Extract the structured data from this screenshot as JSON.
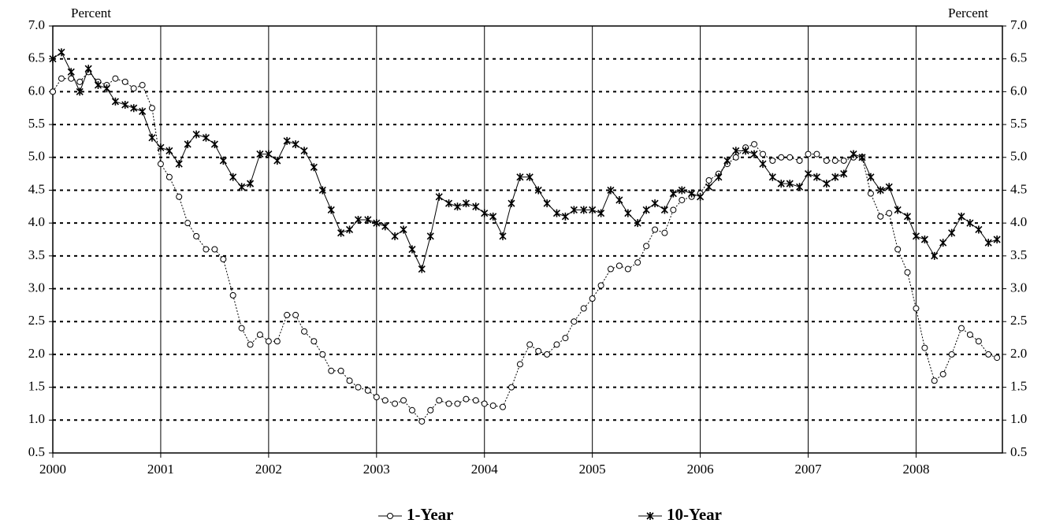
{
  "chart_data": {
    "type": "line",
    "y_label": "Percent",
    "y2_label": "Percent",
    "x": [
      2000.0,
      2000.08,
      2000.17,
      2000.25,
      2000.33,
      2000.42,
      2000.5,
      2000.58,
      2000.67,
      2000.75,
      2000.83,
      2000.92,
      2001.0,
      2001.08,
      2001.17,
      2001.25,
      2001.33,
      2001.42,
      2001.5,
      2001.58,
      2001.67,
      2001.75,
      2001.83,
      2001.92,
      2002.0,
      2002.08,
      2002.17,
      2002.25,
      2002.33,
      2002.42,
      2002.5,
      2002.58,
      2002.67,
      2002.75,
      2002.83,
      2002.92,
      2003.0,
      2003.08,
      2003.17,
      2003.25,
      2003.33,
      2003.42,
      2003.5,
      2003.58,
      2003.67,
      2003.75,
      2003.83,
      2003.92,
      2004.0,
      2004.08,
      2004.17,
      2004.25,
      2004.33,
      2004.42,
      2004.5,
      2004.58,
      2004.67,
      2004.75,
      2004.83,
      2004.92,
      2005.0,
      2005.08,
      2005.17,
      2005.25,
      2005.33,
      2005.42,
      2005.5,
      2005.58,
      2005.67,
      2005.75,
      2005.83,
      2005.92,
      2006.0,
      2006.08,
      2006.17,
      2006.25,
      2006.33,
      2006.42,
      2006.5,
      2006.58,
      2006.67,
      2006.75,
      2006.83,
      2006.92,
      2007.0,
      2007.08,
      2007.17,
      2007.25,
      2007.33,
      2007.42,
      2007.5,
      2007.58,
      2007.67,
      2007.75,
      2007.83,
      2007.92,
      2008.0,
      2008.08,
      2008.17,
      2008.25,
      2008.33,
      2008.42,
      2008.5,
      2008.58,
      2008.67,
      2008.75
    ],
    "series": [
      {
        "name": "1-Year",
        "color": "#000000",
        "marker": "circle",
        "values": [
          6.0,
          6.2,
          6.2,
          6.15,
          6.3,
          6.15,
          6.1,
          6.2,
          6.15,
          6.05,
          6.1,
          5.75,
          4.9,
          4.7,
          4.4,
          4.0,
          3.8,
          3.6,
          3.6,
          3.45,
          2.9,
          2.4,
          2.15,
          2.3,
          2.2,
          2.2,
          2.6,
          2.6,
          2.35,
          2.2,
          2.0,
          1.75,
          1.75,
          1.6,
          1.5,
          1.45,
          1.35,
          1.3,
          1.25,
          1.3,
          1.15,
          0.98,
          1.15,
          1.3,
          1.25,
          1.25,
          1.32,
          1.3,
          1.25,
          1.22,
          1.2,
          1.5,
          1.85,
          2.15,
          2.05,
          2.0,
          2.15,
          2.25,
          2.5,
          2.7,
          2.85,
          3.05,
          3.3,
          3.35,
          3.3,
          3.4,
          3.65,
          3.9,
          3.85,
          4.2,
          4.35,
          4.4,
          4.45,
          4.65,
          4.75,
          4.9,
          5.0,
          5.15,
          5.2,
          5.05,
          4.95,
          5.0,
          5.0,
          4.95,
          5.05,
          5.05,
          4.95,
          4.95,
          4.95,
          5.0,
          5.0,
          4.45,
          4.1,
          4.15,
          3.6,
          3.25,
          2.7,
          2.1,
          1.6,
          1.7,
          2.0,
          2.4,
          2.3,
          2.2,
          2.0,
          1.95
        ]
      },
      {
        "name": "10-Year",
        "color": "#000000",
        "marker": "asterisk",
        "values": [
          6.5,
          6.6,
          6.3,
          6.0,
          6.35,
          6.1,
          6.05,
          5.85,
          5.8,
          5.75,
          5.7,
          5.3,
          5.15,
          5.1,
          4.9,
          5.2,
          5.35,
          5.3,
          5.2,
          4.95,
          4.7,
          4.55,
          4.6,
          5.05,
          5.05,
          4.95,
          5.25,
          5.2,
          5.1,
          4.85,
          4.5,
          4.2,
          3.85,
          3.9,
          4.05,
          4.05,
          4.0,
          3.95,
          3.8,
          3.9,
          3.6,
          3.3,
          3.8,
          4.4,
          4.3,
          4.25,
          4.3,
          4.25,
          4.15,
          4.1,
          3.8,
          4.3,
          4.7,
          4.7,
          4.5,
          4.3,
          4.15,
          4.1,
          4.2,
          4.2,
          4.2,
          4.15,
          4.5,
          4.35,
          4.15,
          4.0,
          4.2,
          4.3,
          4.2,
          4.45,
          4.5,
          4.45,
          4.4,
          4.55,
          4.7,
          4.95,
          5.1,
          5.1,
          5.05,
          4.9,
          4.7,
          4.6,
          4.6,
          4.55,
          4.75,
          4.7,
          4.6,
          4.7,
          4.75,
          5.05,
          5.0,
          4.7,
          4.5,
          4.55,
          4.2,
          4.1,
          3.8,
          3.75,
          3.5,
          3.7,
          3.85,
          4.1,
          4.0,
          3.9,
          3.7,
          3.75
        ]
      }
    ],
    "xlim": [
      2000,
      2008.8
    ],
    "xticks": [
      2000,
      2001,
      2002,
      2003,
      2004,
      2005,
      2006,
      2007,
      2008
    ],
    "ylim": [
      0.5,
      7
    ],
    "yticks": [
      {
        "value": 0.5,
        "label": "0.5"
      },
      {
        "value": 1,
        "label": "1.0"
      },
      {
        "value": 1.5,
        "label": "1.5"
      },
      {
        "value": 2,
        "label": "2.0"
      },
      {
        "value": 2.5,
        "label": "2.5"
      },
      {
        "value": 3,
        "label": "3.0"
      },
      {
        "value": 3.5,
        "label": "3.5"
      },
      {
        "value": 4,
        "label": "4.0"
      },
      {
        "value": 4.5,
        "label": "4.5"
      },
      {
        "value": 5,
        "label": "5.0"
      },
      {
        "value": 5.5,
        "label": "5.5"
      },
      {
        "value": 6,
        "label": "6.0"
      },
      {
        "value": 6.5,
        "label": "6.5"
      },
      {
        "value": 7,
        "label": "7.0"
      }
    ],
    "y2lim": [
      0.5,
      7
    ],
    "y2ticks": [
      {
        "value": 0.5,
        "label": "0.5"
      },
      {
        "value": 1,
        "label": "1.0"
      },
      {
        "value": 1.5,
        "label": "1.5"
      },
      {
        "value": 2,
        "label": "2.0"
      },
      {
        "value": 2.5,
        "label": "2.5"
      },
      {
        "value": 3,
        "label": "3.0"
      },
      {
        "value": 3.5,
        "label": "3.5"
      },
      {
        "value": 4,
        "label": "4.0"
      },
      {
        "value": 4.5,
        "label": "4.5"
      },
      {
        "value": 5,
        "label": "5.0"
      },
      {
        "value": 5.5,
        "label": "5.5"
      },
      {
        "value": 6,
        "label": "6.0"
      },
      {
        "value": 6.5,
        "label": "6.5"
      },
      {
        "value": 7,
        "label": "7.0"
      }
    ],
    "grid": true
  }
}
